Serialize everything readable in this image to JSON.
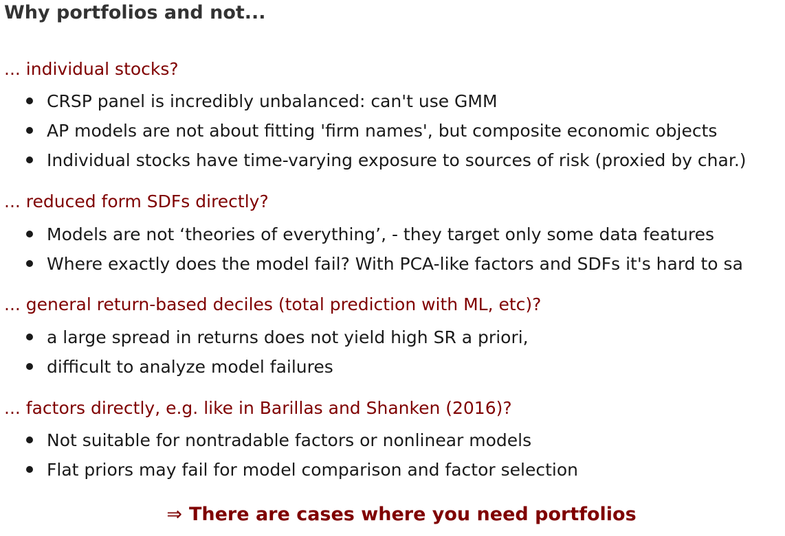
{
  "title": "Why portfolios and not...",
  "sections": [
    {
      "heading": "... individual stocks?",
      "bullets": [
        "CRSP panel is incredibly unbalanced: can't use GMM",
        "AP models are not about fitting 'firm names', but composite economic objects",
        "Individual stocks have time-varying exposure to sources of risk (proxied by char.)"
      ]
    },
    {
      "heading": "... reduced form SDFs directly?",
      "bullets": [
        "Models are not ‘theories of everything’, - they target only some data features",
        "Where exactly does the model fail? With PCA-like factors and SDFs it's hard to sa"
      ]
    },
    {
      "heading": "... general return-based deciles (total prediction with ML, etc)?",
      "bullets": [
        "a large spread in returns does not yield high SR a priori,",
        "difficult to analyze model failures"
      ]
    },
    {
      "heading": "... factors directly, e.g. like in Barillas and Shanken (2016)?",
      "bullets": [
        "Not suitable for nontradable factors or nonlinear models",
        "Flat priors may fail for model comparison and factor selection"
      ]
    }
  ],
  "conclusion": {
    "arrow": "⇒",
    "text": "There are cases where you need portfolios"
  },
  "colors": {
    "heading": "#7f0000",
    "title": "#333333",
    "text": "#1a1a1a"
  }
}
